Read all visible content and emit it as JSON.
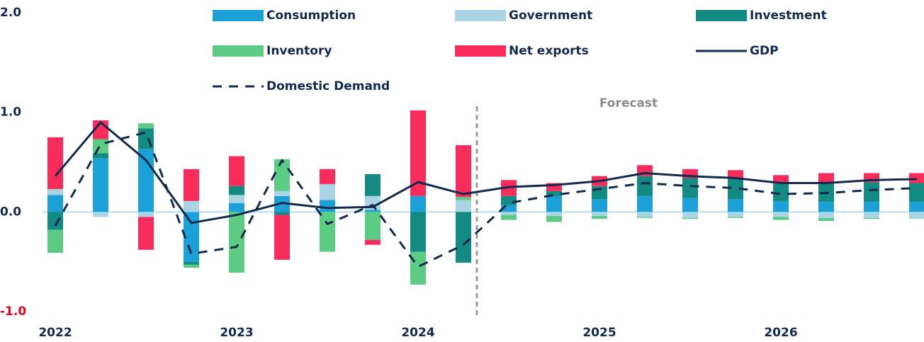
{
  "chart_data": {
    "type": "bar",
    "stacked": true,
    "categories": [
      "2022",
      null,
      null,
      null,
      "2023",
      null,
      null,
      null,
      "2024",
      null,
      null,
      null,
      "2025",
      null,
      null,
      null,
      "2026",
      null,
      null,
      null
    ],
    "series": [
      {
        "name": "Consumption",
        "type": "bar",
        "color": "#1ba1d8",
        "values": [
          0.17,
          0.54,
          0.63,
          -0.5,
          0.09,
          0.16,
          0.12,
          0.02,
          0.16,
          0,
          0.07,
          0.16,
          0.13,
          0.16,
          0.14,
          0.13,
          0.11,
          0.1,
          0.1,
          0.1
        ]
      },
      {
        "name": "Government",
        "type": "bar",
        "color": "#aad4e4",
        "values": [
          0.06,
          -0.05,
          -0.05,
          0.11,
          0.08,
          0.05,
          0.16,
          0.14,
          0,
          0.12,
          -0.03,
          -0.04,
          -0.04,
          -0.05,
          -0.06,
          -0.05,
          -0.05,
          -0.06,
          -0.06,
          -0.07
        ]
      },
      {
        "name": "Investment",
        "type": "bar",
        "color": "#138a82",
        "values": [
          -0.18,
          0.05,
          0.21,
          -0.03,
          0.09,
          -0.03,
          0,
          0.22,
          -0.4,
          -0.51,
          0.09,
          0.05,
          0.13,
          0.2,
          0.2,
          0.2,
          0.17,
          0.2,
          0.2,
          0.19
        ]
      },
      {
        "name": "Inventory",
        "type": "bar",
        "color": "#5ccb84",
        "values": [
          -0.23,
          0.14,
          0.05,
          -0.03,
          -0.61,
          0.32,
          -0.4,
          -0.28,
          -0.33,
          0.03,
          -0.05,
          -0.06,
          -0.03,
          -0.01,
          -0.01,
          -0.01,
          -0.03,
          -0.03,
          -0.01,
          0
        ]
      },
      {
        "name": "Net exports",
        "type": "bar",
        "color": "#f72c5b",
        "values": [
          0.52,
          0.19,
          -0.33,
          0.32,
          0.3,
          -0.45,
          0.15,
          -0.05,
          0.86,
          0.52,
          0.16,
          0.08,
          0.1,
          0.11,
          0.09,
          0.09,
          0.09,
          0.09,
          0.09,
          0.1
        ]
      },
      {
        "name": "GDP",
        "type": "line",
        "style": "solid",
        "color": "#132a4e",
        "values": [
          0.36,
          0.9,
          0.52,
          -0.11,
          -0.03,
          0.09,
          0.04,
          0.05,
          0.3,
          0.18,
          0.25,
          0.27,
          0.31,
          0.39,
          0.36,
          0.34,
          0.29,
          0.29,
          0.32,
          0.33
        ]
      },
      {
        "name": "Domestic Demand",
        "type": "line",
        "style": "dashed",
        "color": "#132a4e",
        "values": [
          -0.14,
          0.68,
          0.8,
          -0.42,
          -0.35,
          0.52,
          -0.12,
          0.07,
          -0.55,
          -0.33,
          0.09,
          0.17,
          0.23,
          0.29,
          0.26,
          0.24,
          0.18,
          0.19,
          0.22,
          0.24
        ]
      }
    ],
    "ylim": [
      -1,
      2
    ],
    "yticks": [
      {
        "value": 2,
        "label": "2.0"
      },
      {
        "value": 1,
        "label": "1.0"
      },
      {
        "value": 0,
        "label": "0.0"
      },
      {
        "value": -1,
        "label": "-1.0"
      }
    ],
    "negative_tick_color": "#e0001b",
    "zero_line": true,
    "annotations": [
      {
        "text": "Forecast"
      }
    ]
  }
}
